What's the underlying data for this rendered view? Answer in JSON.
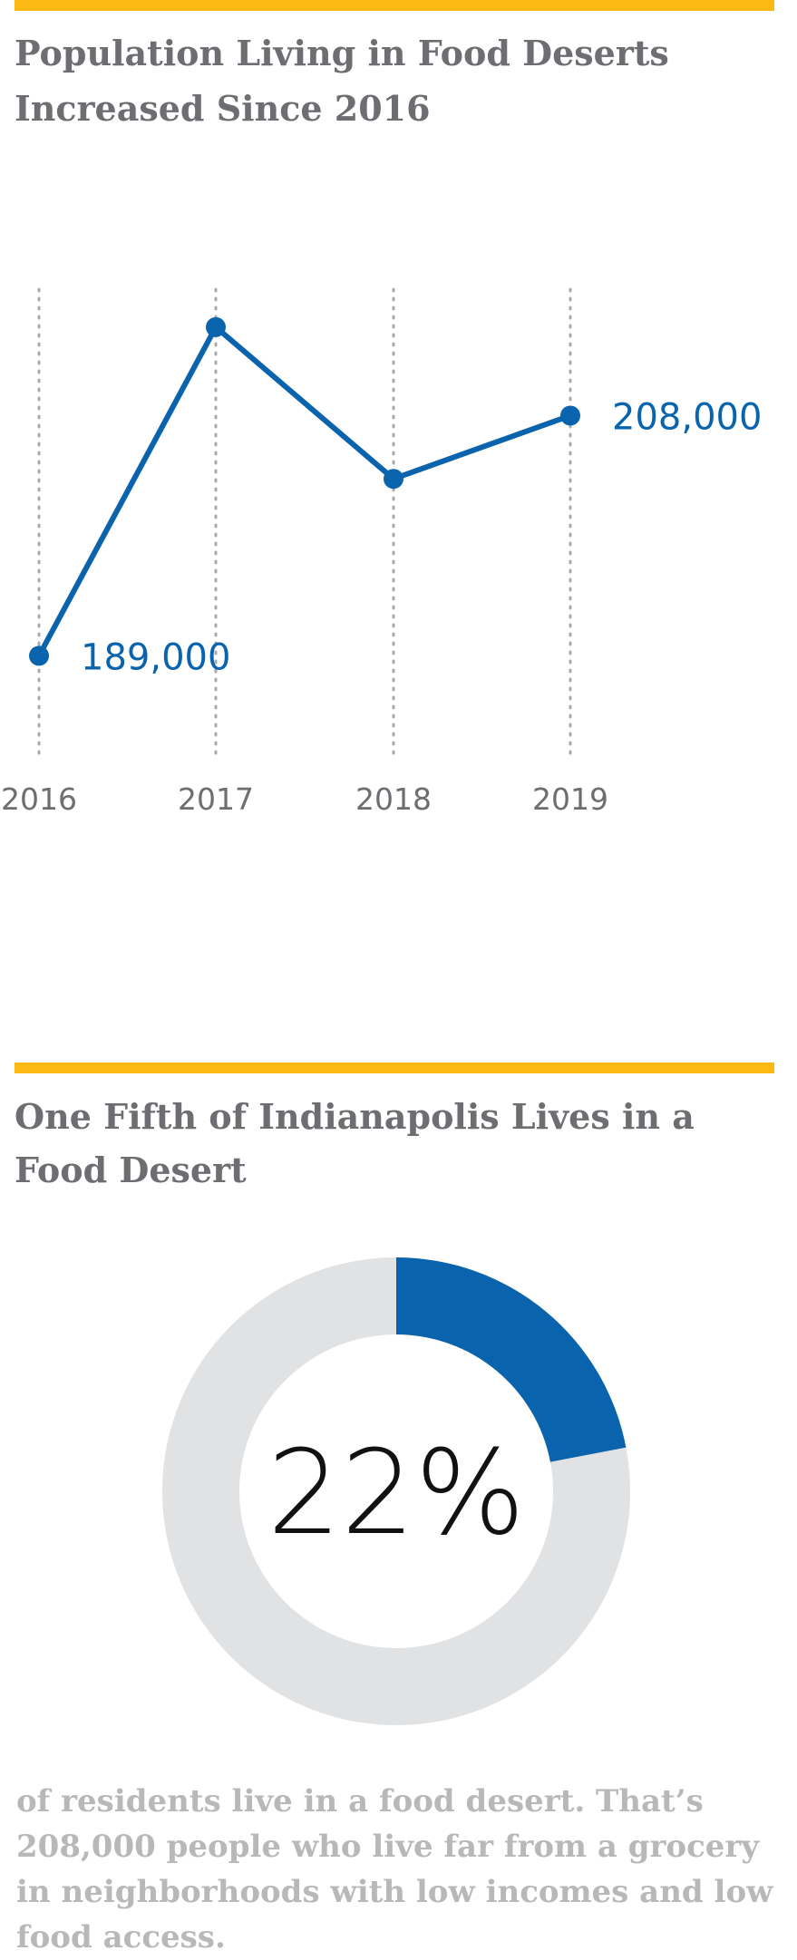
{
  "chart_data": [
    {
      "type": "line",
      "title": [
        "Population Living in Food Deserts",
        "Increased Since 2016"
      ],
      "categories": [
        "2016",
        "2017",
        "2018",
        "2019"
      ],
      "series": [
        {
          "color": "#0a64ad",
          "values": [
            189000,
            215000,
            203000,
            208000
          ],
          "value_labels": [
            "189,000",
            null,
            null,
            "208,000"
          ]
        }
      ],
      "ylim": [
        181000,
        218000
      ],
      "grid": true
    },
    {
      "type": "pie",
      "title": [
        "One Fifth of Indianapolis Lives in a",
        "Food Desert"
      ],
      "values": [
        22
      ],
      "value_labels": [
        "22%"
      ],
      "color": "#0a64ad",
      "caption": "of residents live in a food desert. That’s 208,000 people who live far from a grocery in neighborhoods with low incomes and low food access."
    }
  ]
}
